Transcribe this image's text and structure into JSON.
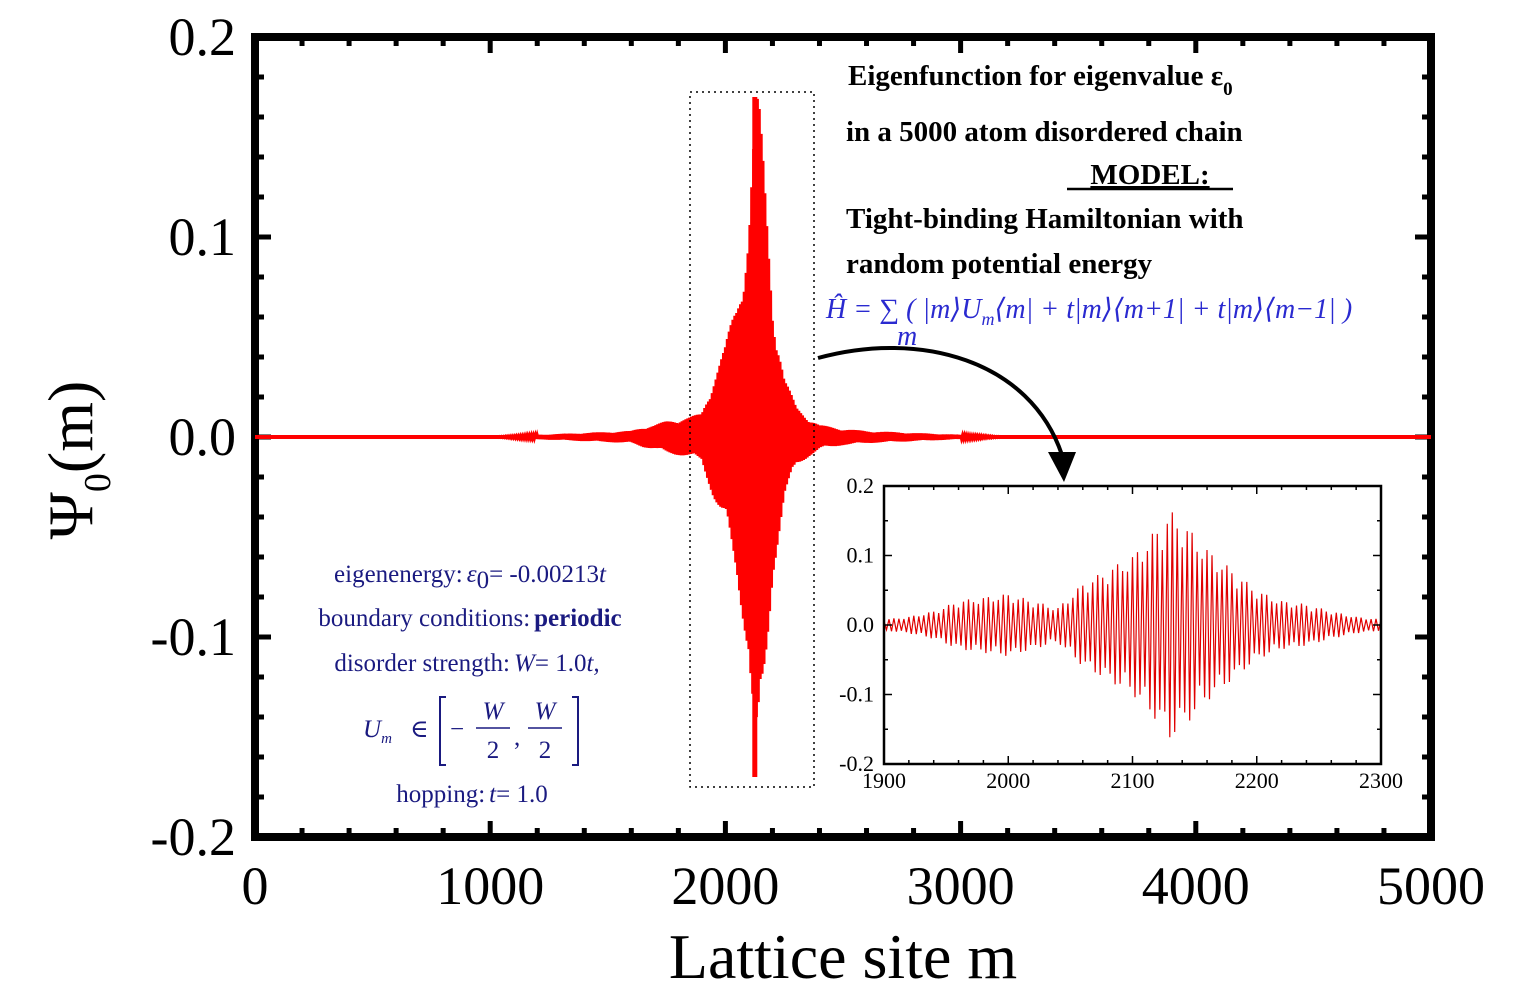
{
  "chart_data": [
    {
      "type": "line",
      "title": "",
      "xlabel": "Lattice site m",
      "ylabel_main": "Ψ",
      "ylabel_sub": "0",
      "ylabel_tail": "(m)",
      "xlim": [
        0,
        5000
      ],
      "ylim": [
        -0.2,
        0.2
      ],
      "x_ticks": [
        "0",
        "1000",
        "2000",
        "3000",
        "4000",
        "5000"
      ],
      "y_ticks": [
        "0.2",
        "0.1",
        "0.0",
        "-0.1",
        "-0.2"
      ],
      "grid": false,
      "series": [
        {
          "color": "#ff0000",
          "points": [
            [
              0,
              0.0
            ],
            [
              1000,
              0.0
            ],
            [
              1200,
              0.001
            ],
            [
              1400,
              0.002
            ],
            [
              1600,
              0.003
            ],
            [
              1650,
              0.005
            ],
            [
              1700,
              0.006
            ],
            [
              1750,
              0.008
            ],
            [
              1800,
              0.009
            ],
            [
              1850,
              0.01
            ],
            [
              1900,
              0.012
            ],
            [
              1950,
              0.03
            ],
            [
              2000,
              0.045
            ],
            [
              2050,
              0.07
            ],
            [
              2100,
              0.11
            ],
            [
              2130,
              0.17
            ],
            [
              2140,
              -0.17
            ],
            [
              2160,
              0.14
            ],
            [
              2200,
              0.07
            ],
            [
              2250,
              0.03
            ],
            [
              2300,
              0.015
            ],
            [
              2350,
              0.01
            ],
            [
              2400,
              0.006
            ],
            [
              2500,
              0.004
            ],
            [
              2600,
              0.003
            ],
            [
              2800,
              0.002
            ],
            [
              3000,
              0.001
            ],
            [
              3200,
              0.0
            ],
            [
              5000,
              0.0
            ]
          ]
        }
      ],
      "annotations": {
        "title_line1": "Eigenfunction for eigenvalue ε",
        "title_line1_sub": "0",
        "title_line2": "in a 5000 atom disordered chain",
        "model_heading": "MODEL:",
        "model_line1": "Tight-binding Hamiltonian with",
        "model_line2": "random potential energy",
        "formula": "Ĥ = ∑ ( |m⟩U",
        "formula_sub_m": "m",
        "formula_tail": "⟨m| + t|m⟩⟨m+1| + t|m⟩⟨m−1| )",
        "formula_sum_index": "m",
        "param_energy_label": "eigenenergy:",
        "param_energy_symbol": "ε",
        "param_energy_sub": "0",
        "param_energy_value": "= -0.00213",
        "param_energy_unit": "t",
        "param_bc_label": "boundary conditions:",
        "param_bc_value": "periodic",
        "param_disorder_label": "disorder strength:",
        "param_disorder_symbol": "W",
        "param_disorder_value": "= 1.0",
        "param_disorder_unit": "t,",
        "param_range_prefix": "U",
        "param_range_sub": "m",
        "param_range_in": "∈",
        "param_range_frac_num": "W",
        "param_range_frac_den": "2",
        "param_range_minus": "−",
        "param_range_comma": ",",
        "param_hopping_label": "hopping:",
        "param_hopping_symbol": "t",
        "param_hopping_value": "= 1.0"
      }
    },
    {
      "type": "line",
      "title": "",
      "xlim": [
        1900,
        2300
      ],
      "ylim": [
        -0.2,
        0.2
      ],
      "x_ticks": [
        "1900",
        "2000",
        "2100",
        "2200",
        "2300"
      ],
      "y_ticks": [
        "0.2",
        "0.1",
        "0.0",
        "-0.1",
        "-0.2"
      ],
      "series": [
        {
          "color": "#e00000",
          "envelope": [
            [
              1900,
              0.008
            ],
            [
              1920,
              0.012
            ],
            [
              1940,
              0.02
            ],
            [
              1960,
              0.035
            ],
            [
              1980,
              0.04
            ],
            [
              2000,
              0.045
            ],
            [
              2020,
              0.035
            ],
            [
              2040,
              0.025
            ],
            [
              2060,
              0.06
            ],
            [
              2080,
              0.08
            ],
            [
              2100,
              0.1
            ],
            [
              2120,
              0.14
            ],
            [
              2130,
              0.165
            ],
            [
              2140,
              0.15
            ],
            [
              2160,
              0.11
            ],
            [
              2180,
              0.08
            ],
            [
              2200,
              0.05
            ],
            [
              2220,
              0.035
            ],
            [
              2240,
              0.03
            ],
            [
              2260,
              0.02
            ],
            [
              2280,
              0.012
            ],
            [
              2300,
              0.008
            ]
          ]
        }
      ]
    }
  ],
  "colors": {
    "curve": "#ff0000",
    "annotation_text": "#1a1a80",
    "formula_text": "#2a2ad0"
  }
}
